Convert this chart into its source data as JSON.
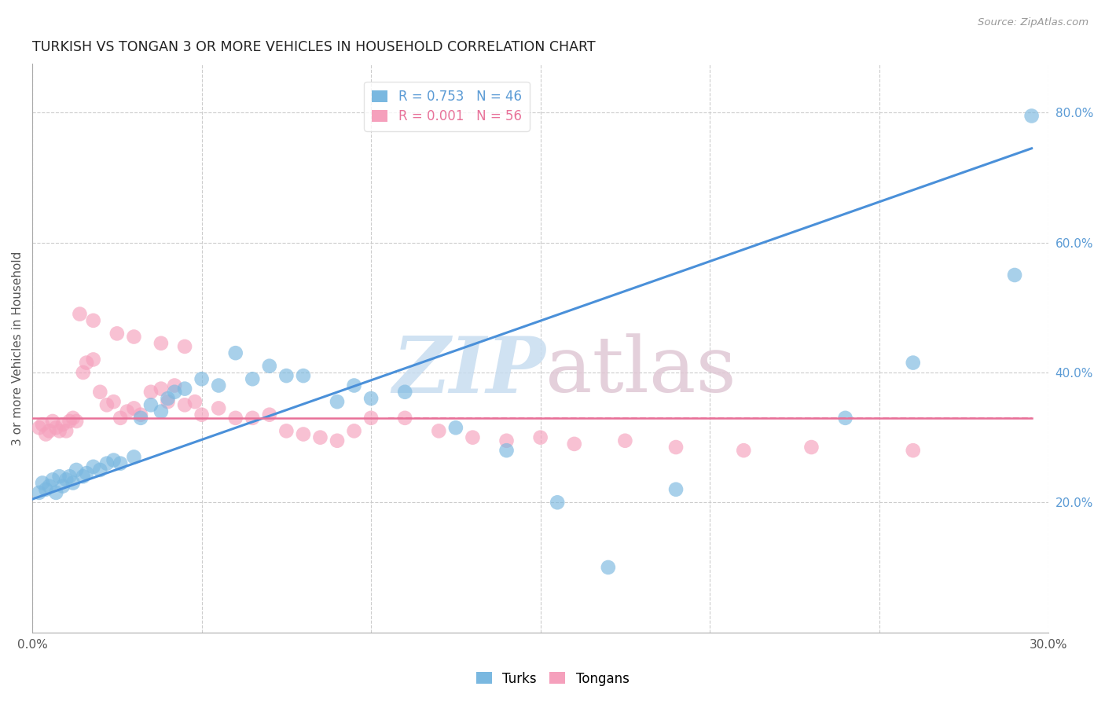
{
  "title": "TURKISH VS TONGAN 3 OR MORE VEHICLES IN HOUSEHOLD CORRELATION CHART",
  "source": "Source: ZipAtlas.com",
  "ylabel_label": "3 or more Vehicles in Household",
  "x_min": 0.0,
  "x_max": 0.3,
  "y_min": 0.0,
  "y_max": 0.875,
  "x_ticks": [
    0.0,
    0.05,
    0.1,
    0.15,
    0.2,
    0.25,
    0.3
  ],
  "x_tick_labels": [
    "0.0%",
    "",
    "",
    "",
    "",
    "",
    "30.0%"
  ],
  "y_ticks_right": [
    0.2,
    0.4,
    0.6,
    0.8
  ],
  "y_tick_labels_right": [
    "20.0%",
    "40.0%",
    "60.0%",
    "80.0%"
  ],
  "legend_turks": "R = 0.753   N = 46",
  "legend_tongans": "R = 0.001   N = 56",
  "turks_color": "#7ab8e0",
  "tongans_color": "#f5a0bc",
  "turks_line_color": "#4a90d9",
  "tongans_line_color": "#e87098",
  "turks_scatter_x": [
    0.002,
    0.003,
    0.004,
    0.005,
    0.006,
    0.007,
    0.008,
    0.009,
    0.01,
    0.011,
    0.012,
    0.013,
    0.015,
    0.016,
    0.018,
    0.02,
    0.022,
    0.024,
    0.026,
    0.03,
    0.032,
    0.035,
    0.038,
    0.04,
    0.042,
    0.045,
    0.05,
    0.055,
    0.06,
    0.065,
    0.07,
    0.075,
    0.08,
    0.09,
    0.095,
    0.1,
    0.11,
    0.125,
    0.14,
    0.155,
    0.17,
    0.19,
    0.24,
    0.26,
    0.29,
    0.295
  ],
  "turks_scatter_y": [
    0.215,
    0.23,
    0.22,
    0.225,
    0.235,
    0.215,
    0.24,
    0.225,
    0.235,
    0.24,
    0.23,
    0.25,
    0.24,
    0.245,
    0.255,
    0.25,
    0.26,
    0.265,
    0.26,
    0.27,
    0.33,
    0.35,
    0.34,
    0.36,
    0.37,
    0.375,
    0.39,
    0.38,
    0.43,
    0.39,
    0.41,
    0.395,
    0.395,
    0.355,
    0.38,
    0.36,
    0.37,
    0.315,
    0.28,
    0.2,
    0.1,
    0.22,
    0.33,
    0.415,
    0.55,
    0.795
  ],
  "tongans_scatter_x": [
    0.002,
    0.003,
    0.004,
    0.005,
    0.006,
    0.007,
    0.008,
    0.009,
    0.01,
    0.011,
    0.012,
    0.013,
    0.015,
    0.016,
    0.018,
    0.02,
    0.022,
    0.024,
    0.026,
    0.028,
    0.03,
    0.032,
    0.035,
    0.038,
    0.04,
    0.042,
    0.045,
    0.048,
    0.05,
    0.055,
    0.06,
    0.065,
    0.07,
    0.075,
    0.08,
    0.085,
    0.09,
    0.095,
    0.1,
    0.11,
    0.12,
    0.13,
    0.14,
    0.15,
    0.16,
    0.175,
    0.19,
    0.21,
    0.23,
    0.26,
    0.014,
    0.018,
    0.025,
    0.03,
    0.038,
    0.045
  ],
  "tongans_scatter_y": [
    0.315,
    0.32,
    0.305,
    0.31,
    0.325,
    0.315,
    0.31,
    0.32,
    0.31,
    0.325,
    0.33,
    0.325,
    0.4,
    0.415,
    0.42,
    0.37,
    0.35,
    0.355,
    0.33,
    0.34,
    0.345,
    0.335,
    0.37,
    0.375,
    0.355,
    0.38,
    0.35,
    0.355,
    0.335,
    0.345,
    0.33,
    0.33,
    0.335,
    0.31,
    0.305,
    0.3,
    0.295,
    0.31,
    0.33,
    0.33,
    0.31,
    0.3,
    0.295,
    0.3,
    0.29,
    0.295,
    0.285,
    0.28,
    0.285,
    0.28,
    0.49,
    0.48,
    0.46,
    0.455,
    0.445,
    0.44
  ],
  "turks_line_x": [
    0.0,
    0.295
  ],
  "turks_line_y": [
    0.205,
    0.745
  ],
  "tongans_line_x": [
    0.0,
    0.295
  ],
  "tongans_line_y": [
    0.33,
    0.33
  ]
}
